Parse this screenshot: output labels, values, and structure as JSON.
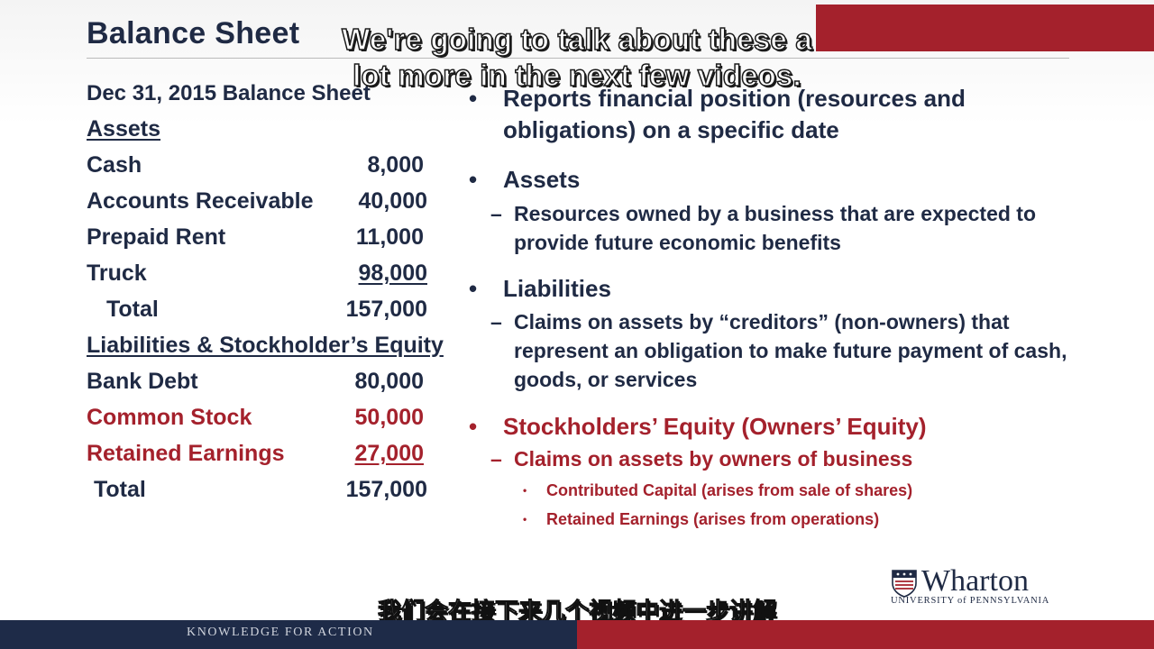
{
  "slide": {
    "title": "Balance Sheet",
    "date_line": "Dec 31, 2015 Balance Sheet"
  },
  "balance_sheet": {
    "assets_heading": "Assets",
    "assets": [
      {
        "label": "Cash",
        "amount": "8,000"
      },
      {
        "label": "Accounts Receivable",
        "amount": "40,000"
      },
      {
        "label": "Prepaid Rent",
        "amount": "11,000"
      },
      {
        "label": "Truck",
        "amount": "98,000"
      }
    ],
    "assets_total_label": "Total",
    "assets_total": "157,000",
    "liab_heading": "Liabilities & Stockholder’s Equity",
    "liabilities": [
      {
        "label": "Bank Debt",
        "amount": "80,000"
      },
      {
        "label": "Common Stock",
        "amount": "50,000"
      },
      {
        "label": "Retained Earnings",
        "amount": "27,000"
      }
    ],
    "liab_total_label": "Total",
    "liab_total": "157,000"
  },
  "bullets": {
    "b1": "Reports financial position (resources and obligations) on a specific date",
    "b2": "Assets",
    "b2_sub": "Resources owned by a business that are expected to provide future economic benefits",
    "b3": "Liabilities",
    "b3_sub": "Claims on assets by “creditors” (non-owners) that represent an obligation to make future payment of cash, goods, or services",
    "b4": "Stockholders’ Equity (Owners’ Equity)",
    "b4_sub": "Claims on assets by owners of business",
    "b4_items": [
      "Contributed Capital (arises from sale of shares)",
      "Retained Earnings (arises from operations)"
    ],
    "bullet_glyph": "•",
    "dash_glyph": "–"
  },
  "subtitles": {
    "english": "We're going to talk about these a lot more in the next few videos.",
    "chinese": "我们会在接下来几个视频中进一步讲解"
  },
  "logo": {
    "name": "Wharton",
    "university": "UNIVERSITY of PENNSYLVANIA"
  },
  "footer": {
    "tagline": "KNOWLEDGE FOR ACTION"
  },
  "colors": {
    "navy": "#1f2a44",
    "crimson": "#a4212c",
    "footer_navy": "#1e2b48"
  }
}
